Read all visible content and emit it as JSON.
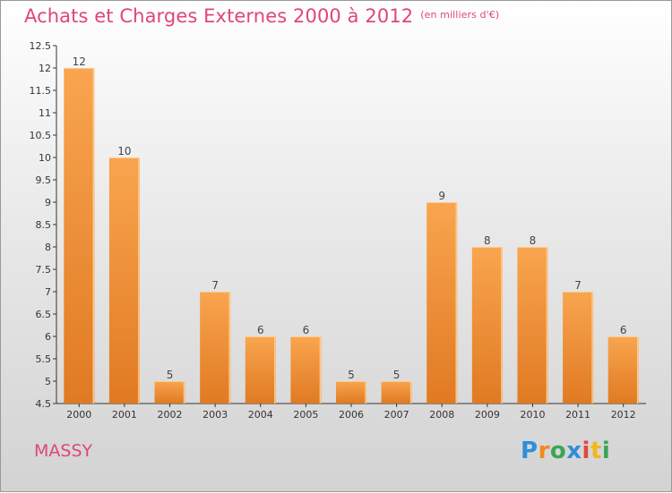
{
  "header": {
    "title": "Achats et Charges Externes 2000 à 2012",
    "unit": "(en milliers d'€)"
  },
  "footer": {
    "city": "MASSY",
    "logo_text": "Proxiti"
  },
  "colors": {
    "title": "#e0457b",
    "bar_top": "#f9a54f",
    "bar_bottom": "#e07a22",
    "bar_edge": "#ffc98a"
  },
  "chart_data": {
    "type": "bar",
    "title": "Achats et Charges Externes 2000 à 2012",
    "subtitle": "(en milliers d'€)",
    "categories": [
      "2000",
      "2001",
      "2002",
      "2003",
      "2004",
      "2005",
      "2006",
      "2007",
      "2008",
      "2009",
      "2010",
      "2011",
      "2012"
    ],
    "values": [
      12,
      10,
      5,
      7,
      6,
      6,
      5,
      5,
      9,
      8,
      8,
      7,
      6
    ],
    "ylim": [
      4.5,
      12.5
    ],
    "yticks": [
      "4.5",
      "5",
      "5.5",
      "6",
      "6.5",
      "7",
      "7.5",
      "8",
      "8.5",
      "9",
      "9.5",
      "10",
      "10.5",
      "11",
      "11.5",
      "12",
      "12.5"
    ],
    "grid": false,
    "xlabel": "",
    "ylabel": ""
  }
}
